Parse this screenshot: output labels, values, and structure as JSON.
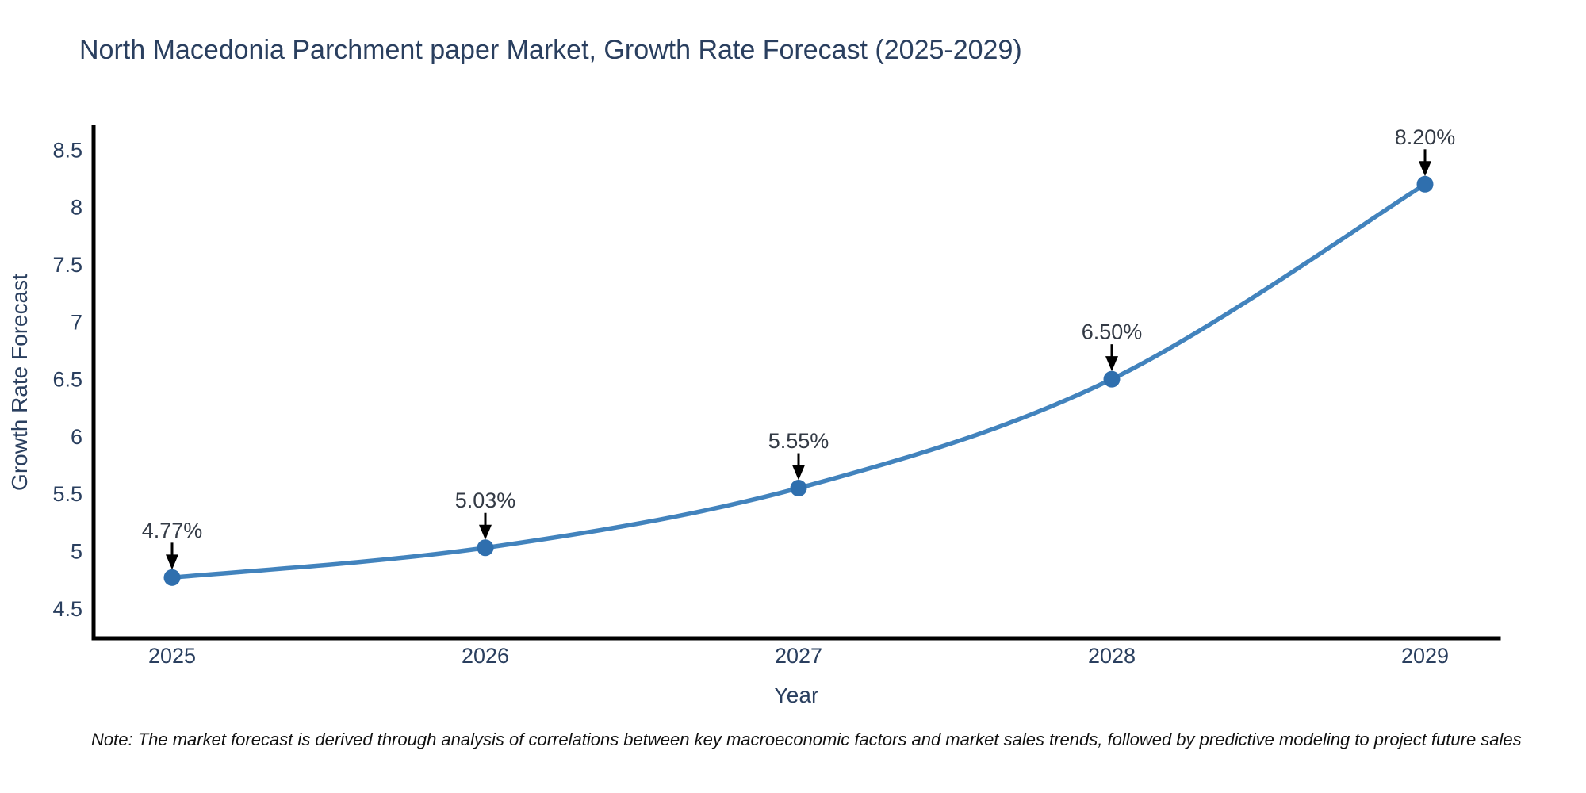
{
  "note": "Note: The market forecast is derived through analysis of correlations between key macroeconomic factors and market sales trends, followed by predictive modeling to project future sales",
  "chart_data": {
    "type": "line",
    "title": "North Macedonia Parchment paper Market, Growth Rate Forecast (2025-2029)",
    "xlabel": "Year",
    "ylabel": "Growth Rate Forecast",
    "categories": [
      "2025",
      "2026",
      "2027",
      "2028",
      "2029"
    ],
    "values": [
      4.77,
      5.03,
      5.55,
      6.5,
      8.2
    ],
    "point_labels": [
      "4.77%",
      "5.03%",
      "5.55%",
      "6.50%",
      "8.20%"
    ],
    "ytick_labels": [
      "4.5",
      "5",
      "5.5",
      "6",
      "6.5",
      "7",
      "7.5",
      "8",
      "8.5"
    ],
    "ylim": [
      4.24,
      8.7
    ],
    "grid": false,
    "legend": "none",
    "line_shape": "spline",
    "colors": {
      "line": "#4283bd",
      "marker": "#2f6fae",
      "axis_line": "#000000",
      "axis_text": "#2a3f5f",
      "annotation_text": "#333a45",
      "arrow": "#000000",
      "note_text": "#111111",
      "background": "#ffffff"
    }
  }
}
